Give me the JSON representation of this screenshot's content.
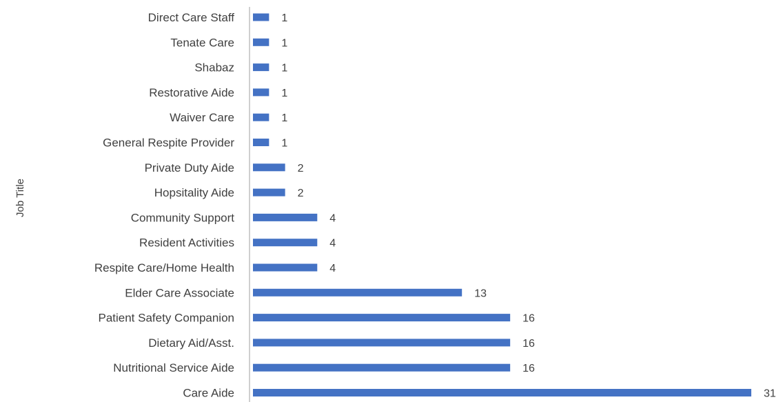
{
  "chart_data": {
    "type": "bar",
    "orientation": "horizontal",
    "ylabel": "Job Title",
    "xlabel": "",
    "xlim": [
      0,
      31
    ],
    "categories": [
      "Direct Care Staff",
      "Tenate Care",
      "Shabaz",
      "Restorative Aide",
      "Waiver Care",
      "General Respite Provider",
      "Private Duty Aide",
      "Hopsitality Aide",
      "Community Support",
      "Resident Activities",
      "Respite Care/Home Health",
      "Elder Care Associate",
      "Patient Safety Companion",
      "Dietary Aid/Asst.",
      "Nutritional Service Aide",
      "Care Aide"
    ],
    "values": [
      1,
      1,
      1,
      1,
      1,
      1,
      2,
      2,
      4,
      4,
      4,
      13,
      16,
      16,
      16,
      31
    ],
    "data_labels": true,
    "grid": false,
    "legend": "none",
    "bar_color": "#4472C4",
    "axis_color": "#BFBFBF",
    "text_color": "#404040"
  }
}
